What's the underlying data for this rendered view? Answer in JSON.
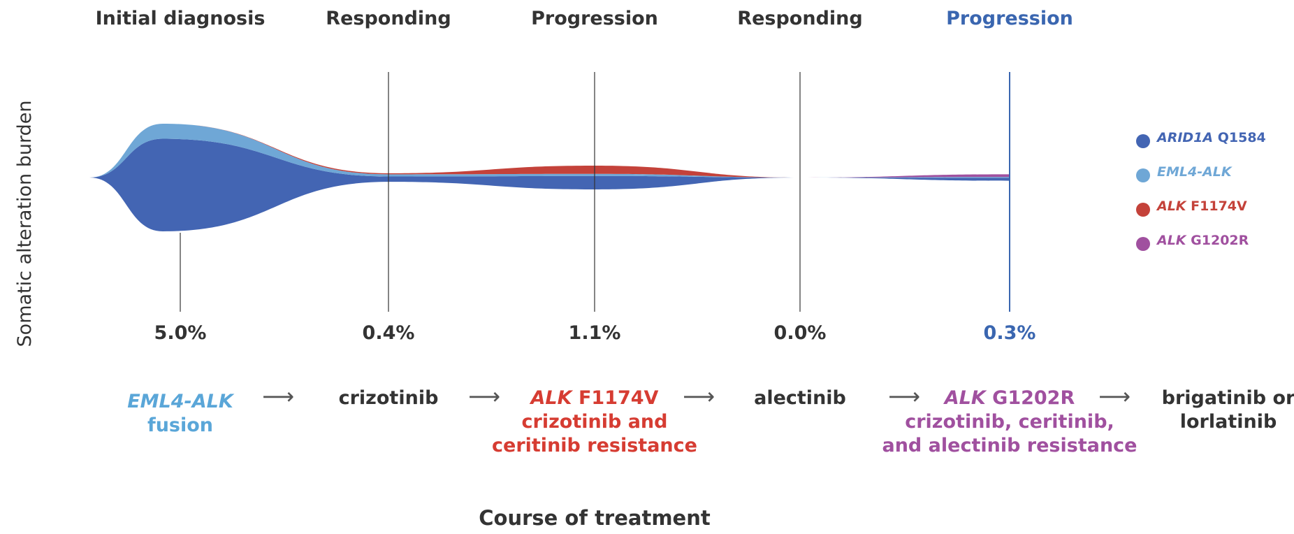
{
  "chart_data": {
    "type": "area",
    "title": "",
    "xlabel": "Course of treatment",
    "ylabel": "Somatic alteration burden",
    "grid": false,
    "legend_position": "right",
    "timepoints": [
      {
        "label": "Initial diagnosis",
        "value": "5.0%",
        "highlight": false
      },
      {
        "label": "Responding",
        "value": "0.4%",
        "highlight": false
      },
      {
        "label": "Progression",
        "value": "1.1%",
        "highlight": false
      },
      {
        "label": "Responding",
        "value": "0.0%",
        "highlight": false
      },
      {
        "label": "Progression",
        "value": "0.3%",
        "highlight": true
      }
    ],
    "burden_percent": [
      5.0,
      0.4,
      1.1,
      0.0,
      0.3
    ],
    "series": [
      {
        "gene": "ARID1A",
        "variant": "Q1584",
        "color": "#4365b3",
        "values": [
          4.3,
          0.25,
          0.62,
          0.0,
          0.14
        ]
      },
      {
        "gene": "EML4-ALK",
        "variant": "",
        "color": "#6fa7d6",
        "values": [
          0.7,
          0.1,
          0.1,
          0.0,
          0.04
        ]
      },
      {
        "gene": "ALK",
        "variant": "F1174V",
        "color": "#c4423a",
        "values": [
          0.0,
          0.05,
          0.38,
          0.0,
          0.0
        ]
      },
      {
        "gene": "ALK",
        "variant": "G1202R",
        "color": "#a0509f",
        "values": [
          0.0,
          0.0,
          0.0,
          0.0,
          0.12
        ]
      }
    ],
    "annotations": [
      {
        "lines": [
          {
            "italic": "EML4-ALK",
            "normal": ""
          },
          {
            "italic": "",
            "normal": "fusion"
          }
        ],
        "color": "#5aa6d8"
      },
      {
        "lines": [
          {
            "italic": "",
            "normal": "crizotinib"
          }
        ],
        "color": "#333333"
      },
      {
        "lines": [
          {
            "italic": "ALK",
            "normal": " F1174V"
          },
          {
            "italic": "",
            "normal": "crizotinib and"
          },
          {
            "italic": "",
            "normal": "ceritinib resistance"
          }
        ],
        "color": "#d63c32"
      },
      {
        "lines": [
          {
            "italic": "",
            "normal": "alectinib"
          }
        ],
        "color": "#333333"
      },
      {
        "lines": [
          {
            "italic": "ALK",
            "normal": " G1202R"
          },
          {
            "italic": "",
            "normal": "crizotinib, ceritinib,"
          },
          {
            "italic": "",
            "normal": "and alectinib resistance"
          }
        ],
        "color": "#a0509f"
      },
      {
        "lines": [
          {
            "italic": "",
            "normal": "brigatinib or"
          },
          {
            "italic": "",
            "normal": "lorlatinib"
          }
        ],
        "color": "#333333"
      }
    ],
    "arrow_symbol": "⟶"
  },
  "colors": {
    "text": "#333333",
    "highlight": "#3a66b0",
    "divider": "#333333",
    "highlight_divider": "#3a66b0"
  }
}
